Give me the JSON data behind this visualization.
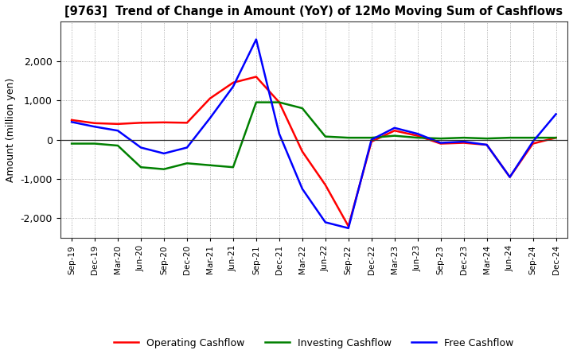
{
  "title": "[9763]  Trend of Change in Amount (YoY) of 12Mo Moving Sum of Cashflows",
  "ylabel": "Amount (million yen)",
  "x_labels": [
    "Sep-19",
    "Dec-19",
    "Mar-20",
    "Jun-20",
    "Sep-20",
    "Dec-20",
    "Mar-21",
    "Jun-21",
    "Sep-21",
    "Dec-21",
    "Mar-22",
    "Jun-22",
    "Sep-22",
    "Dec-22",
    "Mar-23",
    "Jun-23",
    "Sep-23",
    "Dec-23",
    "Mar-24",
    "Jun-24",
    "Sep-24",
    "Dec-24"
  ],
  "operating": [
    500,
    420,
    400,
    430,
    440,
    430,
    1050,
    1450,
    1600,
    950,
    -300,
    -1150,
    -2200,
    -50,
    230,
    100,
    -100,
    -80,
    -130,
    -950,
    -100,
    50
  ],
  "investing": [
    -100,
    -100,
    -150,
    -700,
    -750,
    -600,
    -650,
    -700,
    950,
    950,
    800,
    80,
    50,
    50,
    100,
    50,
    30,
    50,
    30,
    50,
    50,
    50
  ],
  "free": [
    450,
    330,
    230,
    -200,
    -350,
    -200,
    550,
    1350,
    2550,
    150,
    -1250,
    -2100,
    -2250,
    0,
    300,
    150,
    -80,
    -50,
    -130,
    -950,
    -50,
    650
  ],
  "ylim": [
    -2500,
    3000
  ],
  "yticks": [
    -2000,
    -1000,
    0,
    1000,
    2000
  ],
  "operating_color": "#ff0000",
  "investing_color": "#008000",
  "free_color": "#0000ff",
  "bg_color": "#ffffff",
  "grid_color": "#999999",
  "linewidth": 1.8
}
